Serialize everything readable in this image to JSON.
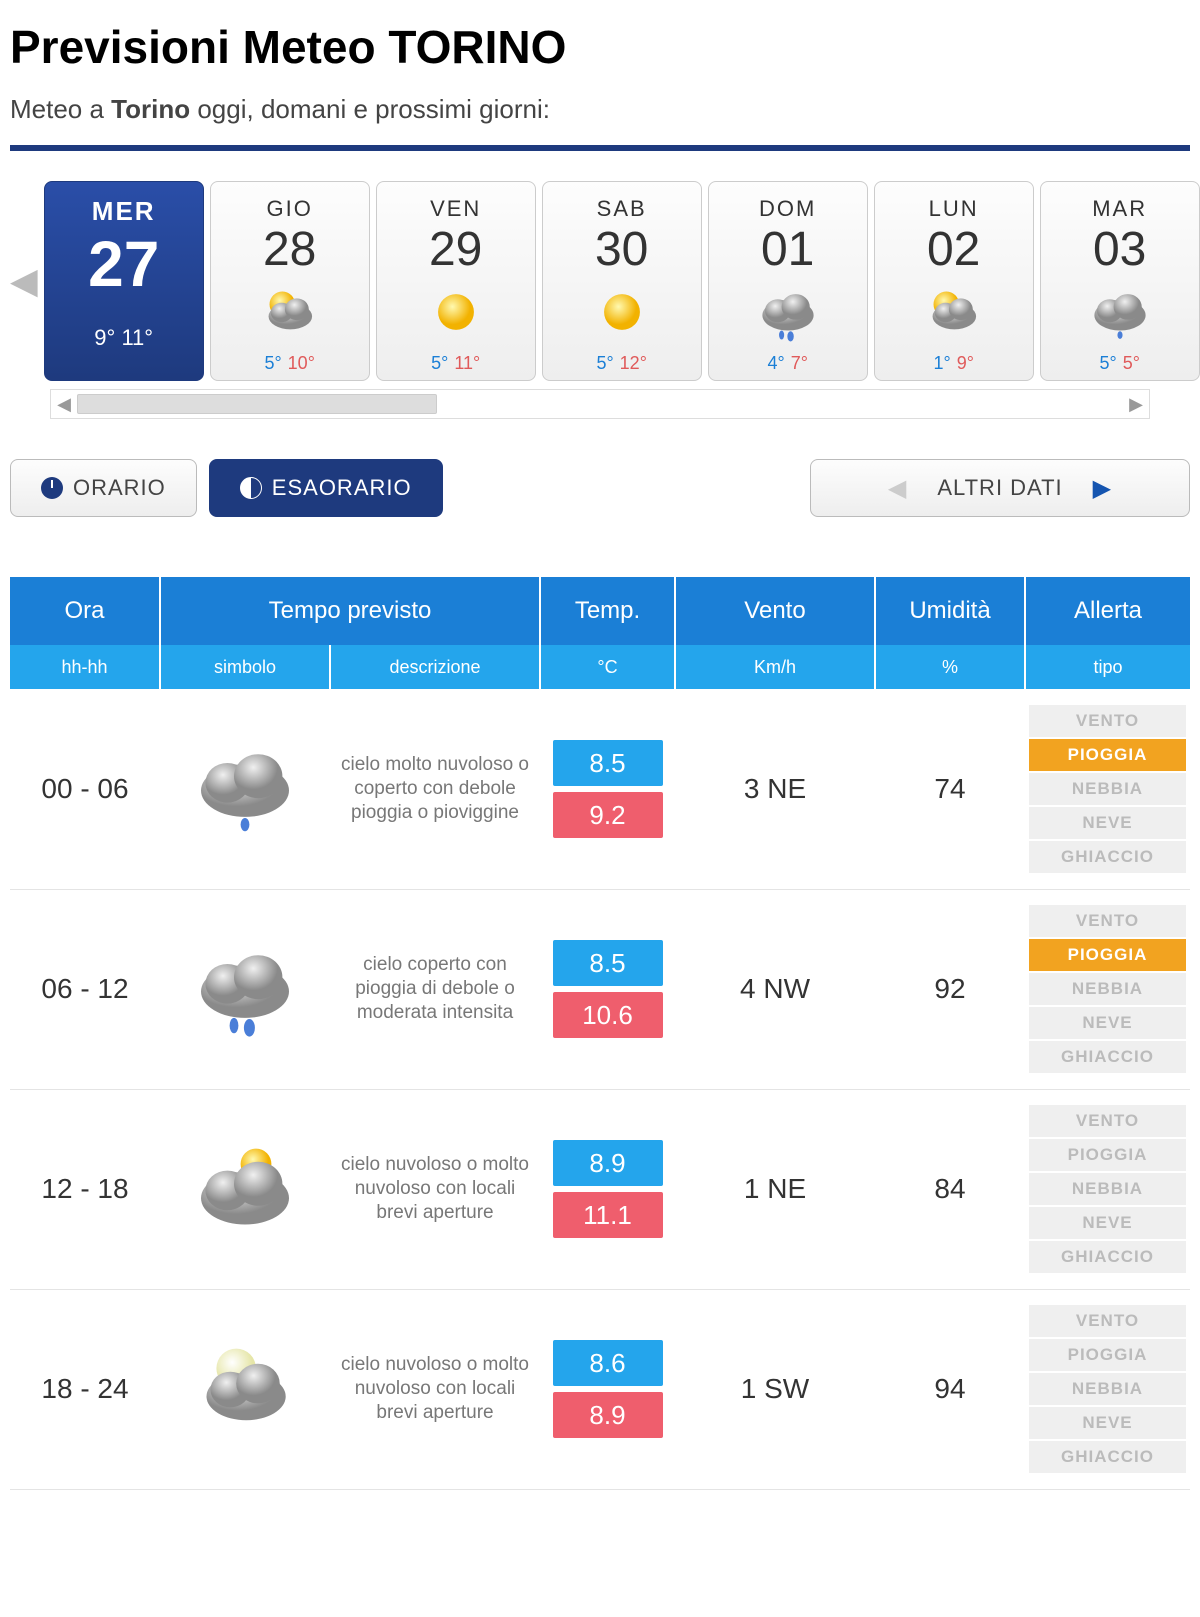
{
  "header": {
    "title": "Previsioni Meteo TORINO",
    "subtitle_prefix": "Meteo a ",
    "subtitle_city": "Torino",
    "subtitle_suffix": " oggi, domani e prossimi giorni:"
  },
  "colors": {
    "brand_dark": "#1e3a7e",
    "brand_blue": "#1b7fd6",
    "brand_lightblue": "#24a5ec",
    "temp_cold_bg": "#24a5ec",
    "temp_warm_bg": "#ef5e6d",
    "alert_on_bg": "#f2a320",
    "alert_off_bg": "#efefef",
    "alert_off_fg": "#bbbbbb",
    "temp_min_fg": "#1b7fd6",
    "temp_max_fg": "#e05a5a",
    "nav_right_fg": "#1555b0"
  },
  "days": [
    {
      "dow": "MER",
      "num": "27",
      "selected": true,
      "icon": "cloud-drop",
      "tmin": "9°",
      "tmax": "11°"
    },
    {
      "dow": "GIO",
      "num": "28",
      "selected": false,
      "icon": "sun-cloud",
      "tmin": "5°",
      "tmax": "10°"
    },
    {
      "dow": "VEN",
      "num": "29",
      "selected": false,
      "icon": "sun",
      "tmin": "5°",
      "tmax": "11°"
    },
    {
      "dow": "SAB",
      "num": "30",
      "selected": false,
      "icon": "sun",
      "tmin": "5°",
      "tmax": "12°"
    },
    {
      "dow": "DOM",
      "num": "01",
      "selected": false,
      "icon": "cloud-rain",
      "tmin": "4°",
      "tmax": "7°"
    },
    {
      "dow": "LUN",
      "num": "02",
      "selected": false,
      "icon": "sun-cloud",
      "tmin": "1°",
      "tmax": "9°"
    },
    {
      "dow": "MAR",
      "num": "03",
      "selected": false,
      "icon": "cloud-drop",
      "tmin": "5°",
      "tmax": "5°"
    }
  ],
  "view_tabs": {
    "orario": "ORARIO",
    "esa": "ESAORARIO",
    "altri": "ALTRI DATI",
    "active": "esa"
  },
  "table": {
    "headers1": [
      "Ora",
      "Tempo previsto",
      "Temp.",
      "Vento",
      "Umidità",
      "Allerta"
    ],
    "headers2": [
      "hh-hh",
      "simbolo",
      "descrizione",
      "°C",
      "Km/h",
      "%",
      "tipo"
    ],
    "alert_labels": [
      "VENTO",
      "PIOGGIA",
      "NEBBIA",
      "NEVE",
      "GHIACCIO"
    ],
    "rows": [
      {
        "ora": "00 - 06",
        "icon": "cloud-drop",
        "desc": "cielo molto nuvoloso o coperto con debole pioggia o pioviggine",
        "tmin": "8.5",
        "tmax": "9.2",
        "vento": "3 NE",
        "umid": "74",
        "alerts_on": [
          1
        ]
      },
      {
        "ora": "06 - 12",
        "icon": "cloud-rain",
        "desc": "cielo coperto con pioggia di debole o moderata intensita",
        "tmin": "8.5",
        "tmax": "10.6",
        "vento": "4 NW",
        "umid": "92",
        "alerts_on": [
          1
        ]
      },
      {
        "ora": "12 - 18",
        "icon": "sun-cloud2",
        "desc": "cielo nuvoloso o molto nuvoloso con locali brevi aperture",
        "tmin": "8.9",
        "tmax": "11.1",
        "vento": "1 NE",
        "umid": "84",
        "alerts_on": []
      },
      {
        "ora": "18 - 24",
        "icon": "moon-cloud",
        "desc": "cielo nuvoloso o molto nuvoloso con locali brevi aperture",
        "tmin": "8.6",
        "tmax": "8.9",
        "vento": "1 SW",
        "umid": "94",
        "alerts_on": []
      }
    ]
  }
}
